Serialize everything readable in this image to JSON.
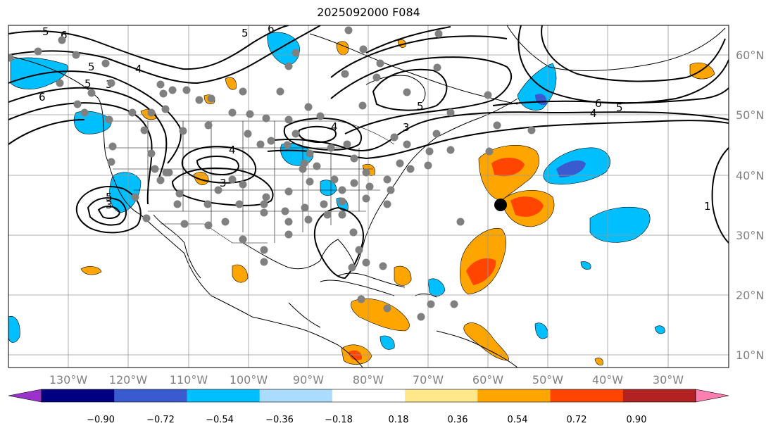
{
  "title": "2025092000 F084",
  "lon_labels": [
    "130°W",
    "120°W",
    "110°W",
    "100°W",
    "90°W",
    "80°W",
    "70°W",
    "60°W",
    "50°W",
    "40°W",
    "30°W"
  ],
  "lat_labels": [
    "60°N",
    "50°N",
    "40°N",
    "30°N",
    "20°N",
    "10°N"
  ],
  "colorbar": {
    "colors": [
      "#9933cc",
      "#000080",
      "#3a5ad0",
      "#00bfff",
      "#aadcff",
      "#ffffff",
      "#ffe88a",
      "#ffa500",
      "#ff4500",
      "#b22222",
      "#ff80b0"
    ],
    "ticks": [
      "−0.90",
      "−0.72",
      "−0.54",
      "−0.36",
      "−0.18",
      "0.18",
      "0.36",
      "0.54",
      "0.72",
      "0.90"
    ]
  },
  "contour_labels": [
    "5",
    "6",
    "4",
    "5",
    "3",
    "6",
    "6",
    "5",
    "4",
    "5",
    "3",
    "3",
    "4",
    "5",
    "5",
    "6",
    "5",
    "4",
    "3",
    "1"
  ],
  "marker": {
    "lon": -58,
    "lat": 35
  }
}
